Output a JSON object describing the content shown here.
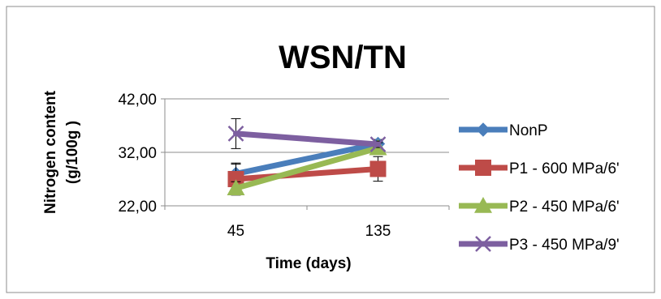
{
  "chart_data": {
    "type": "line",
    "title": "WSN/TN",
    "xlabel": "Time (days)",
    "ylabel_line1": "Nitrogen content",
    "ylabel_line2": "(g/100g )",
    "categories": [
      "45",
      "135"
    ],
    "ylim": [
      22,
      42
    ],
    "yticks": [
      "22,00",
      "32,00",
      "42,00"
    ],
    "grid": true,
    "legend": "right",
    "series": [
      {
        "name": "NonP",
        "values": [
          28.0,
          33.6
        ],
        "errors": [
          1.8,
          0.8
        ],
        "color": "#4a7ebb",
        "marker": "diamond"
      },
      {
        "name": "P1 - 600 MPa/6'",
        "values": [
          27.0,
          28.9
        ],
        "errors": [
          3.0,
          2.3
        ],
        "color": "#be4b48",
        "marker": "square"
      },
      {
        "name": "P2 - 450 MPa/6'",
        "values": [
          25.3,
          32.8
        ],
        "errors": [
          1.2,
          1.0
        ],
        "color": "#98b954",
        "marker": "triangle"
      },
      {
        "name": "P3 - 450 MPa/9'",
        "values": [
          35.5,
          33.5
        ],
        "errors": [
          2.8,
          0.6
        ],
        "color": "#7d5fa0",
        "marker": "x"
      }
    ]
  }
}
